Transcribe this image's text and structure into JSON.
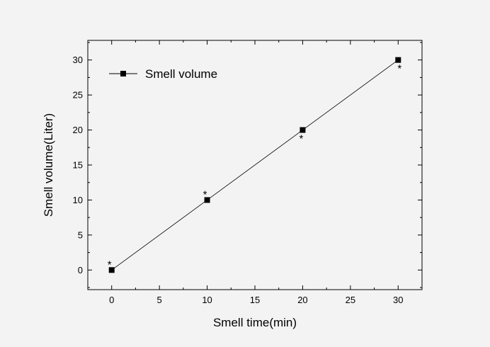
{
  "chart_data": {
    "type": "line",
    "xlabel": "Smell time(min)",
    "ylabel": "Smell volume(Liter)",
    "xlim": [
      -2.5,
      32.5
    ],
    "ylim": [
      -2.8,
      32.8
    ],
    "xticks": [
      0,
      5,
      10,
      15,
      20,
      25,
      30
    ],
    "yticks": [
      0,
      5,
      10,
      15,
      20,
      25,
      30
    ],
    "grid": false,
    "legend": {
      "placement": "top-left"
    },
    "series": [
      {
        "name": "Smell volume",
        "marker": "square",
        "color": "#000000",
        "x": [
          0,
          10,
          20,
          30
        ],
        "y": [
          0,
          10,
          20,
          30
        ]
      }
    ],
    "annotations": [
      {
        "text": "*",
        "x": 0,
        "y": 0,
        "position": "above-left"
      },
      {
        "text": "*",
        "x": 10,
        "y": 10,
        "position": "above-left"
      },
      {
        "text": "*",
        "x": 20,
        "y": 20,
        "position": "below-left"
      },
      {
        "text": "*",
        "x": 30,
        "y": 30,
        "position": "below-right"
      }
    ]
  }
}
